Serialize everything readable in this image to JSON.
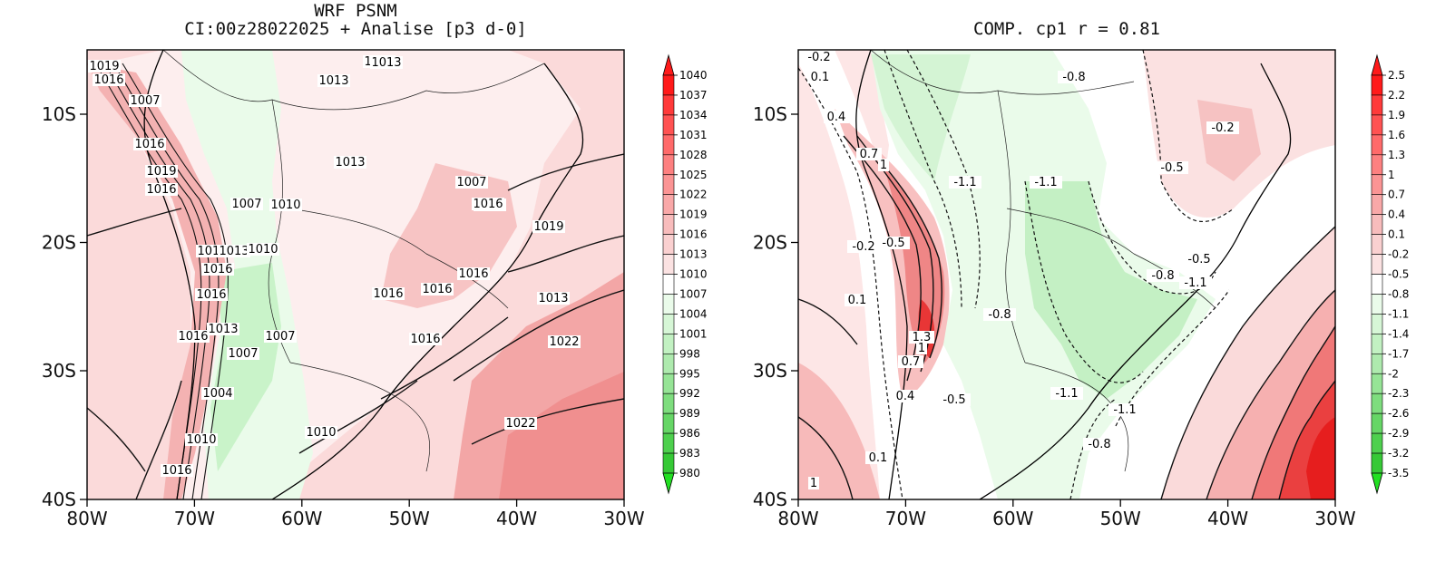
{
  "left_panel": {
    "title_line1": "WRF PSNM",
    "title_line2": "CI:00z28022025 + Analise  [p3 d-0]",
    "x_ticks": [
      "80W",
      "70W",
      "60W",
      "50W",
      "40W",
      "30W"
    ],
    "y_ticks": [
      "10S",
      "20S",
      "30S",
      "40S"
    ],
    "colorbar": [
      "1040",
      "1037",
      "1034",
      "1031",
      "1028",
      "1025",
      "1022",
      "1019",
      "1016",
      "1013",
      "1010",
      "1007",
      "1004",
      "1001",
      "998",
      "995",
      "992",
      "989",
      "986",
      "983",
      "980"
    ],
    "contour_labels": [
      "1019",
      "1016",
      "1007",
      "1013",
      "1013",
      "1013",
      "1016",
      "1019",
      "1016",
      "1007",
      "1010",
      "1013",
      "1013",
      "1016",
      "1016",
      "1010",
      "1013",
      "1016",
      "1016",
      "1016",
      "1016",
      "1019",
      "1013",
      "1013",
      "1007",
      "1007",
      "1016",
      "1022",
      "1010",
      "1004",
      "1007",
      "1007",
      "1010",
      "1022",
      "1016",
      "1016"
    ]
  },
  "right_panel": {
    "title": "COMP. cp1  r =  0.81",
    "x_ticks": [
      "80W",
      "70W",
      "60W",
      "50W",
      "40W",
      "30W"
    ],
    "y_ticks": [
      "10S",
      "20S",
      "30S",
      "40S"
    ],
    "colorbar": [
      "2.5",
      "2.2",
      "1.9",
      "1.6",
      "1.3",
      "1",
      "0.7",
      "0.4",
      "0.1",
      "-0.2",
      "-0.5",
      "-0.8",
      "-1.1",
      "-1.4",
      "-1.7",
      "-2",
      "-2.3",
      "-2.6",
      "-2.9",
      "-3.2",
      "-3.5"
    ],
    "contour_labels": [
      "-0.2",
      "0.1",
      "0.4",
      "0.7",
      "1",
      "-1.1",
      "-1.1",
      "-0.8",
      "-0.2",
      "-0.5",
      "-0.2",
      "-0.5",
      "0.1",
      "-0.8",
      "-0.5",
      "-1.1",
      "-0.8",
      "1.3",
      "1",
      "0.7",
      "0.4",
      "-0.5",
      "-1.1",
      "-1.1",
      "-0.8",
      "0.1",
      "1"
    ]
  },
  "colors": {
    "pos_light": "#fce4e4",
    "pos_mid": "#f9bcbc",
    "pos_strong": "#f08c8c",
    "pos_peak": "#e82a2a",
    "neg_light": "#e6f7e6",
    "neg_mid": "#c2f0c2",
    "colorbar_top": "#ff1a1a",
    "colorbar_bottom": "#22e022"
  }
}
